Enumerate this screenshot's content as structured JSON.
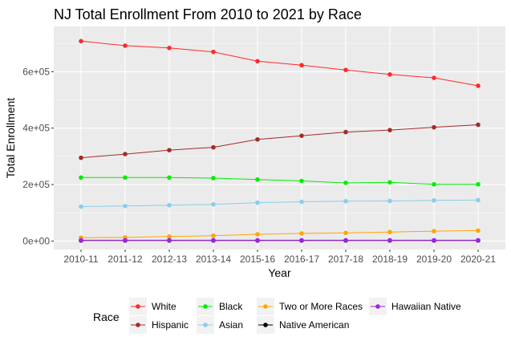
{
  "chart_data": {
    "type": "line",
    "title": "NJ Total Enrollment From 2010 to 2021 by Race",
    "xlabel": "Year",
    "ylabel": "Total Enrollment",
    "categories": [
      "2010-11",
      "2011-12",
      "2012-13",
      "2013-14",
      "2015-16",
      "2016-17",
      "2017-18",
      "2018-19",
      "2019-20",
      "2020-21"
    ],
    "ylim": [
      -30000,
      760000
    ],
    "yticks": [
      0,
      200000,
      400000,
      600000
    ],
    "ytick_labels": [
      "0e+00",
      "2e+05",
      "4e+05",
      "6e+05"
    ],
    "grid": true,
    "legend": {
      "title": "Race",
      "position": "bottom"
    },
    "series": [
      {
        "name": "White",
        "color": "#ff2a2a",
        "values": [
          708000,
          692000,
          684000,
          670000,
          637000,
          623000,
          606000,
          590000,
          578000,
          550000
        ]
      },
      {
        "name": "Hispanic",
        "color": "#a52a2a",
        "values": [
          295000,
          308000,
          322000,
          332000,
          360000,
          373000,
          386000,
          393000,
          403000,
          412000
        ]
      },
      {
        "name": "Black",
        "color": "#00ee00",
        "values": [
          225000,
          225000,
          225000,
          223000,
          218000,
          213000,
          206000,
          208000,
          201000,
          201000
        ]
      },
      {
        "name": "Asian",
        "color": "#87ceeb",
        "values": [
          122000,
          124000,
          127000,
          130000,
          136000,
          139000,
          141000,
          142000,
          144000,
          145000
        ]
      },
      {
        "name": "Two or More Races",
        "color": "#ffa500",
        "values": [
          12000,
          13000,
          16000,
          19000,
          24000,
          27000,
          29000,
          32000,
          35000,
          37000
        ]
      },
      {
        "name": "Native American",
        "color": "#000000",
        "values": [
          2000,
          2000,
          2000,
          2000,
          2000,
          2000,
          2000,
          2000,
          2000,
          2000
        ]
      },
      {
        "name": "Hawaiian Native",
        "color": "#a020f0",
        "values": [
          3000,
          3000,
          3000,
          3000,
          3000,
          3000,
          3000,
          3000,
          3000,
          3000
        ]
      }
    ]
  }
}
